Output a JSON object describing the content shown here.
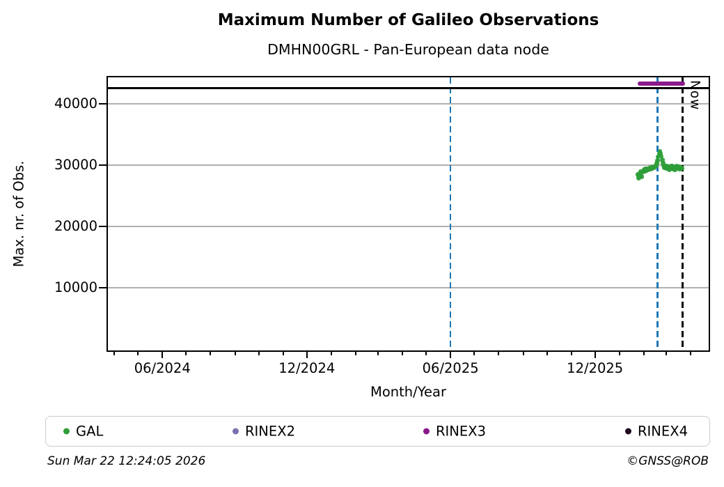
{
  "footer": {
    "timestamp": "Sun Mar 22 12:24:05 2026",
    "credit": "©GNSS@ROB"
  },
  "legend": [
    {
      "label": "GAL",
      "color": "#2e9e38"
    },
    {
      "label": "RINEX2",
      "color": "#7a71b0"
    },
    {
      "label": "RINEX3",
      "color": "#8b1a8b"
    },
    {
      "label": "RINEX4",
      "color": "#1e081c"
    }
  ],
  "chart_data": {
    "type": "scatter",
    "title": "Maximum Number of Galileo Observations",
    "subtitle": "DMHN00GRL - Pan-European data node",
    "xlabel": "Month/Year",
    "ylabel": "Max. nr. of Obs.",
    "x_domain": [
      "2024-03-24",
      "2026-04-24"
    ],
    "ylim": [
      -150,
      44300
    ],
    "y_ticks": [
      10000,
      20000,
      30000,
      40000
    ],
    "x_ticks_major": [
      {
        "date": "2024-06-01",
        "label": "06/2024"
      },
      {
        "date": "2024-12-01",
        "label": "12/2024"
      },
      {
        "date": "2025-06-01",
        "label": "06/2025"
      },
      {
        "date": "2025-12-01",
        "label": "12/2025"
      }
    ],
    "minor_ticks": "monthly",
    "grid": "horizontal",
    "grid_color": "#b0b0b0",
    "vlines": [
      {
        "date": "2025-06-01",
        "color": "#1f77b4",
        "style": "dashed"
      },
      {
        "date": "2026-02-18",
        "color": "#1f77b4",
        "style": "dashed"
      }
    ],
    "now_line": {
      "date": "2026-03-22",
      "label": "Now",
      "color": "#000000",
      "style": "dashed"
    },
    "reference_hline": {
      "value": 42500,
      "color": "#000000"
    },
    "series": [
      {
        "name": "GAL",
        "color": "#2e9e38",
        "type": "scatter",
        "points": [
          [
            "2026-01-24",
            28500
          ],
          [
            "2026-01-25",
            27950
          ],
          [
            "2026-01-26",
            28300
          ],
          [
            "2026-01-27",
            28650
          ],
          [
            "2026-01-28",
            29000
          ],
          [
            "2026-01-29",
            28150
          ],
          [
            "2026-01-31",
            28900
          ],
          [
            "2026-02-01",
            29300
          ],
          [
            "2026-02-02",
            29050
          ],
          [
            "2026-02-03",
            29450
          ],
          [
            "2026-02-04",
            29150
          ],
          [
            "2026-02-05",
            29500
          ],
          [
            "2026-02-06",
            29250
          ],
          [
            "2026-02-08",
            29600
          ],
          [
            "2026-02-09",
            29350
          ],
          [
            "2026-02-10",
            29700
          ],
          [
            "2026-02-11",
            29500
          ],
          [
            "2026-02-13",
            29800
          ],
          [
            "2026-02-14",
            29600
          ],
          [
            "2026-02-16",
            29900
          ],
          [
            "2026-02-17",
            30300
          ],
          [
            "2026-02-18",
            30800
          ],
          [
            "2026-02-19",
            31400
          ],
          [
            "2026-02-20",
            31900
          ],
          [
            "2026-02-21",
            32250
          ],
          [
            "2026-02-22",
            31950
          ],
          [
            "2026-02-23",
            31500
          ],
          [
            "2026-02-24",
            30900
          ],
          [
            "2026-02-25",
            30400
          ],
          [
            "2026-02-26",
            29950
          ],
          [
            "2026-02-27",
            29600
          ],
          [
            "2026-02-28",
            29850
          ],
          [
            "2026-03-01",
            29500
          ],
          [
            "2026-03-02",
            29900
          ],
          [
            "2026-03-03",
            29450
          ],
          [
            "2026-03-04",
            29750
          ],
          [
            "2026-03-05",
            29300
          ],
          [
            "2026-03-06",
            29650
          ],
          [
            "2026-03-07",
            29950
          ],
          [
            "2026-03-08",
            29550
          ],
          [
            "2026-03-09",
            29850
          ],
          [
            "2026-03-10",
            29400
          ],
          [
            "2026-03-11",
            29700
          ],
          [
            "2026-03-12",
            29250
          ],
          [
            "2026-03-13",
            29600
          ],
          [
            "2026-03-14",
            29900
          ],
          [
            "2026-03-16",
            29500
          ],
          [
            "2026-03-17",
            29800
          ],
          [
            "2026-03-18",
            29350
          ],
          [
            "2026-03-19",
            29650
          ],
          [
            "2026-03-20",
            29450
          ],
          [
            "2026-03-21",
            29550
          ]
        ]
      },
      {
        "name": "RINEX3",
        "color": "#8b1a8b",
        "type": "segment",
        "from": "2026-01-27",
        "to": "2026-03-22",
        "value": 43300
      },
      {
        "name": "RINEX2",
        "color": "#7a71b0",
        "type": "scatter",
        "points": []
      },
      {
        "name": "RINEX4",
        "color": "#1e081c",
        "type": "scatter",
        "points": []
      }
    ]
  }
}
